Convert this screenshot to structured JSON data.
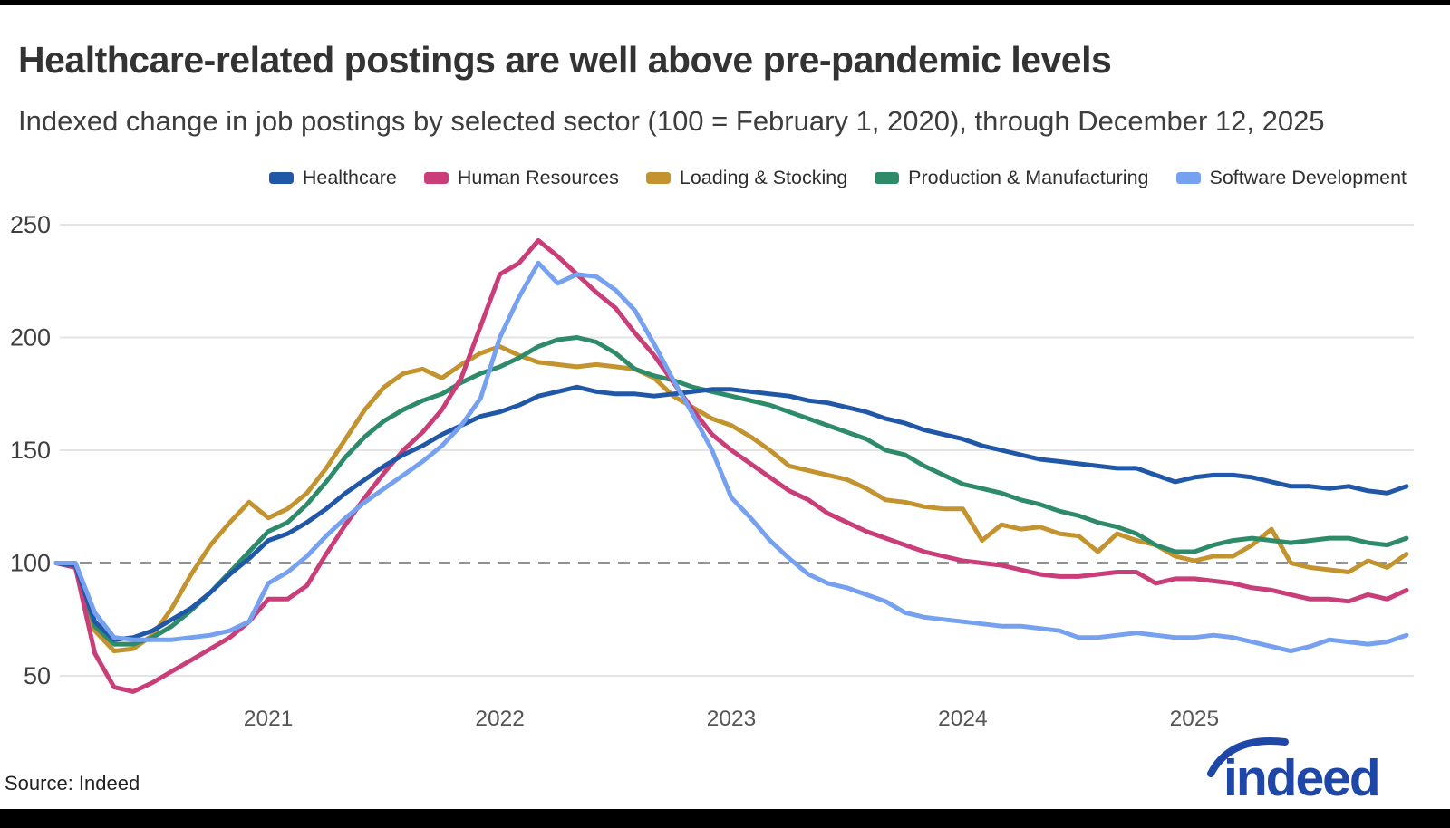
{
  "page": {
    "title": "Healthcare-related postings are well above pre-pandemic levels",
    "subtitle": "Indexed change in job postings by selected sector (100 = February 1, 2020), through December 12, 2025",
    "source": "Source: Indeed",
    "logo_text": "indeed",
    "logo_color": "#1E47A8"
  },
  "chart_data": {
    "type": "line",
    "title": "Healthcare-related postings are well above pre-pandemic levels",
    "subtitle": "Indexed change in job postings by selected sector (100 = February 1, 2020), through December 12, 2025",
    "x_unit": "months from February 2020 (index 0 = 2020-02, last = 2025-12)",
    "x_start": "2020-02",
    "x_end": "2025-12",
    "x_tick_labels": [
      "2021",
      "2022",
      "2023",
      "2024",
      "2025"
    ],
    "x_tick_month_indices": [
      11,
      23,
      35,
      47,
      59
    ],
    "y_ticks": [
      250,
      200,
      150,
      100,
      50
    ],
    "ylim": [
      50,
      250
    ],
    "baseline_value": 100,
    "grid": "horizontal",
    "legend_position": "top",
    "colors": {
      "grid": "#e4e4e4",
      "baseline_dash": "#6e6e6e",
      "y_tick_text": "#3f3f3f",
      "x_tick_text": "#555555"
    },
    "series": [
      {
        "name": "Healthcare",
        "color": "#2057A7",
        "values": [
          100,
          99,
          74,
          66,
          67,
          70,
          75,
          80,
          87,
          95,
          102,
          110,
          113,
          118,
          124,
          131,
          137,
          143,
          148,
          152,
          157,
          161,
          165,
          167,
          170,
          174,
          176,
          178,
          176,
          175,
          175,
          174,
          175,
          176,
          177,
          177,
          176,
          175,
          174,
          172,
          171,
          169,
          167,
          164,
          162,
          159,
          157,
          155,
          152,
          150,
          148,
          146,
          145,
          144,
          143,
          142,
          142,
          139,
          136,
          138,
          139,
          139,
          138,
          136,
          134,
          134,
          133,
          134,
          132,
          131,
          134
        ]
      },
      {
        "name": "Human Resources",
        "color": "#C93D78",
        "values": [
          100,
          98,
          60,
          45,
          43,
          47,
          52,
          57,
          62,
          67,
          74,
          84,
          84,
          90,
          104,
          117,
          129,
          140,
          150,
          158,
          168,
          182,
          205,
          228,
          233,
          243,
          236,
          228,
          220,
          213,
          202,
          192,
          180,
          168,
          157,
          150,
          144,
          138,
          132,
          128,
          122,
          118,
          114,
          111,
          108,
          105,
          103,
          101,
          100,
          99,
          97,
          95,
          94,
          94,
          95,
          96,
          96,
          91,
          93,
          93,
          92,
          91,
          89,
          88,
          86,
          84,
          84,
          83,
          86,
          84,
          88
        ]
      },
      {
        "name": "Loading & Stocking",
        "color": "#C3932F",
        "values": [
          100,
          98,
          70,
          61,
          62,
          68,
          80,
          95,
          108,
          118,
          127,
          120,
          124,
          131,
          142,
          155,
          168,
          178,
          184,
          186,
          182,
          188,
          193,
          196,
          192,
          189,
          188,
          187,
          188,
          187,
          186,
          182,
          174,
          169,
          164,
          161,
          156,
          150,
          143,
          141,
          139,
          137,
          133,
          128,
          127,
          125,
          124,
          124,
          110,
          117,
          115,
          116,
          113,
          112,
          105,
          113,
          110,
          108,
          103,
          101,
          103,
          103,
          108,
          115,
          100,
          98,
          97,
          96,
          101,
          98,
          104
        ]
      },
      {
        "name": "Production & Manufacturing",
        "color": "#2E8B69",
        "values": [
          100,
          99,
          72,
          64,
          64,
          67,
          72,
          79,
          87,
          96,
          105,
          114,
          118,
          126,
          136,
          147,
          156,
          163,
          168,
          172,
          175,
          180,
          184,
          187,
          191,
          196,
          199,
          200,
          198,
          193,
          186,
          183,
          181,
          178,
          176,
          174,
          172,
          170,
          167,
          164,
          161,
          158,
          155,
          150,
          148,
          143,
          139,
          135,
          133,
          131,
          128,
          126,
          123,
          121,
          118,
          116,
          113,
          108,
          105,
          105,
          108,
          110,
          111,
          110,
          109,
          110,
          111,
          111,
          109,
          108,
          111
        ]
      },
      {
        "name": "Software Development",
        "color": "#76A1F0",
        "values": [
          100,
          100,
          78,
          67,
          66,
          66,
          66,
          67,
          68,
          70,
          74,
          91,
          96,
          103,
          112,
          120,
          127,
          133,
          139,
          145,
          152,
          161,
          173,
          200,
          218,
          233,
          224,
          228,
          227,
          221,
          212,
          197,
          181,
          166,
          150,
          129,
          120,
          110,
          102,
          95,
          91,
          89,
          86,
          83,
          78,
          76,
          75,
          74,
          73,
          72,
          72,
          71,
          70,
          67,
          67,
          68,
          69,
          68,
          67,
          67,
          68,
          67,
          65,
          63,
          61,
          63,
          66,
          65,
          64,
          65,
          68
        ]
      }
    ],
    "draw_order": [
      "Loading & Stocking",
      "Production & Manufacturing",
      "Human Resources",
      "Healthcare",
      "Software Development"
    ]
  }
}
